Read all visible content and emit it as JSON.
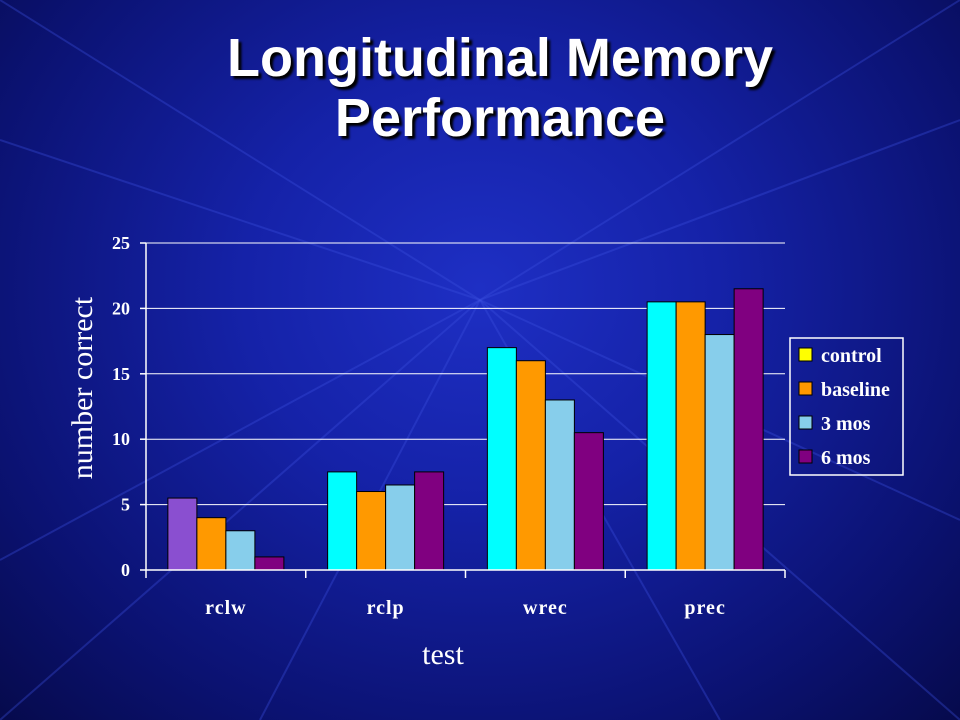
{
  "slide": {
    "title": "Longitudinal Memory Performance"
  },
  "chart_data": {
    "type": "bar",
    "title": "",
    "xlabel": "test",
    "ylabel": "number correct",
    "ylim": [
      0,
      25
    ],
    "yticks": [
      0,
      5,
      10,
      15,
      20,
      25
    ],
    "grid": true,
    "legend_position": "right",
    "categories": [
      "rclw",
      "rclp",
      "wrec",
      "prec"
    ],
    "series": [
      {
        "name": "control",
        "color": "#00ffff",
        "legend_color": "#ffff00",
        "values": [
          5.5,
          7.5,
          17,
          20.5
        ],
        "first_bar_color": "#8a4fd0"
      },
      {
        "name": "baseline",
        "color": "#ff9900",
        "values": [
          4,
          6,
          16,
          20.5
        ]
      },
      {
        "name": "3 mos",
        "color": "#87ceeb",
        "values": [
          3,
          6.5,
          13,
          18
        ]
      },
      {
        "name": "6 mos",
        "color": "#800080",
        "values": [
          1,
          7.5,
          10.5,
          21.5
        ]
      }
    ]
  }
}
